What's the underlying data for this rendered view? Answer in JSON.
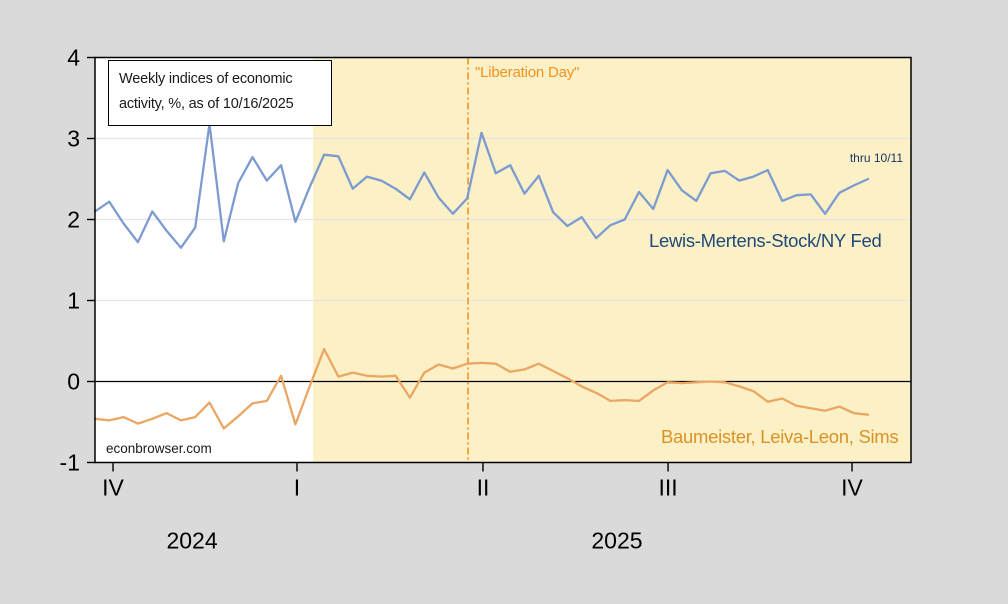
{
  "chart_data": {
    "type": "line",
    "title": "Weekly indices of economic activity, %, as of 10/16/2025",
    "title_box_lines": [
      "Weekly indices of economic",
      "activity, %, as of 10/16/2025"
    ],
    "watermark": "econbrowser.com",
    "thru_annotation": {
      "text": "thru 10/11",
      "color": "#17365D"
    },
    "vline_annotation": {
      "week": 26.06,
      "label": "\"Liberation Day\"",
      "color": "#F39221"
    },
    "shaded_region": {
      "start_week": 15.23,
      "end_week": 57,
      "color": "#FBF0C6"
    },
    "background_color": "#DADADA",
    "plot_background": "#FFFFFF",
    "xaxis": {
      "max_week": 57,
      "quarter_ticks": [
        {
          "week": 1.26,
          "label": "IV"
        },
        {
          "week": 14.11,
          "label": "I"
        },
        {
          "week": 27.1,
          "label": "II"
        },
        {
          "week": 40.03,
          "label": "III"
        },
        {
          "week": 52.88,
          "label": "IV"
        }
      ],
      "year_labels": [
        {
          "week": 6.78,
          "label": "2024"
        },
        {
          "week": 36.46,
          "label": "2025"
        }
      ]
    },
    "yaxis": {
      "min": -1,
      "max": 4,
      "ticks": [
        4,
        3,
        2,
        1,
        0,
        -1
      ],
      "gridlines": [
        1,
        2,
        3
      ]
    },
    "series": [
      {
        "name": "Lewis-Mertens-Stock/NY Fed",
        "color": "#7D9BD1",
        "label_color": "#1F4979",
        "values": [
          2.1,
          2.22,
          1.95,
          1.72,
          2.1,
          1.86,
          1.65,
          1.9,
          3.18,
          1.73,
          2.45,
          2.77,
          2.48,
          2.67,
          1.97,
          2.4,
          2.8,
          2.78,
          2.38,
          2.53,
          2.48,
          2.38,
          2.25,
          2.58,
          2.27,
          2.07,
          2.26,
          3.07,
          2.57,
          2.67,
          2.32,
          2.54,
          2.09,
          1.92,
          2.03,
          1.77,
          1.93,
          2.0,
          2.34,
          2.13,
          2.61,
          2.36,
          2.23,
          2.57,
          2.6,
          2.48,
          2.53,
          2.61,
          2.23,
          2.3,
          2.31,
          2.07,
          2.33,
          2.42,
          2.5
        ]
      },
      {
        "name": "Baumeister, Leiva-Leon, Sims",
        "color": "#EAA662",
        "label_color": "#DB9226",
        "values": [
          -0.46,
          -0.48,
          -0.44,
          -0.52,
          -0.46,
          -0.39,
          -0.48,
          -0.44,
          -0.26,
          -0.58,
          -0.43,
          -0.27,
          -0.24,
          0.07,
          -0.53,
          -0.06,
          0.4,
          0.06,
          0.11,
          0.07,
          0.06,
          0.07,
          -0.2,
          0.11,
          0.21,
          0.16,
          0.22,
          0.23,
          0.22,
          0.12,
          0.15,
          0.22,
          0.13,
          0.04,
          -0.06,
          -0.14,
          -0.24,
          -0.23,
          -0.24,
          -0.11,
          -0.01,
          -0.02,
          -0.01,
          0.0,
          -0.01,
          -0.06,
          -0.12,
          -0.25,
          -0.21,
          -0.3,
          -0.33,
          -0.36,
          -0.31,
          -0.39,
          -0.41
        ]
      }
    ]
  }
}
